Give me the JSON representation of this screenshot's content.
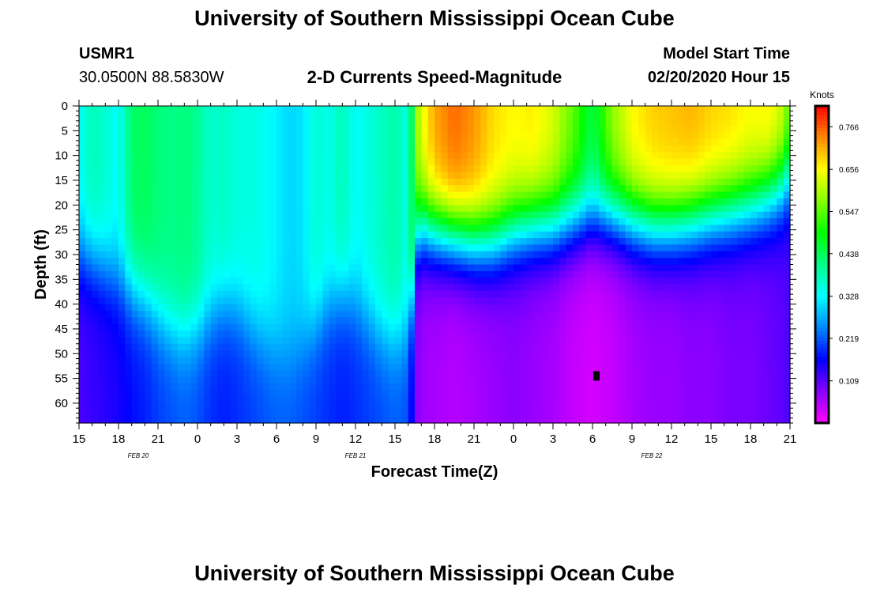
{
  "page": {
    "title_top": "University of Southern Mississippi Ocean Cube",
    "title_bottom": "University of Southern Mississippi Ocean Cube",
    "station_id": "USMR1",
    "station_coords": "30.0500N 88.5830W",
    "product_title": "2-D Currents Speed-Magnitude",
    "model_start_label": "Model Start Time",
    "model_start_value": "02/20/2020 Hour 15"
  },
  "colors": {
    "palette": [
      "#ff00ff",
      "#8800ff",
      "#0000ff",
      "#0088ff",
      "#00ffff",
      "#00ff88",
      "#00ff00",
      "#88ff00",
      "#ffff00",
      "#ff8800",
      "#ff0000"
    ],
    "marker": "#000000"
  },
  "chart_data": {
    "type": "heatmap",
    "title": "2-D Currents Speed-Magnitude",
    "xlabel": "Forecast Time(Z)",
    "ylabel": "Depth (ft)",
    "x_tick_labels": [
      "15",
      "18",
      "21",
      "0",
      "3",
      "6",
      "9",
      "12",
      "15",
      "18",
      "21",
      "0",
      "3",
      "6",
      "9",
      "12",
      "15",
      "18",
      "21"
    ],
    "x_hours": [
      0,
      3,
      6,
      9,
      12,
      15,
      18,
      21,
      24,
      27,
      30,
      33,
      36,
      39,
      42,
      45,
      48,
      51,
      54
    ],
    "date_labels": [
      {
        "text": "FEB  20",
        "hour": 4.5
      },
      {
        "text": "FEB  21",
        "hour": 21
      },
      {
        "text": "FEB  22",
        "hour": 43.5
      }
    ],
    "y_ticks": [
      0,
      5,
      10,
      15,
      20,
      25,
      30,
      35,
      40,
      45,
      50,
      55,
      60
    ],
    "xlim": [
      0,
      54
    ],
    "ylim": [
      0,
      64
    ],
    "colorbar": {
      "unit": "Knots",
      "min": 0.0,
      "max": 0.82,
      "labels": [
        "0.766",
        "0.656",
        "0.547",
        "0.438",
        "0.328",
        "0.219",
        "0.109"
      ]
    },
    "profile_hours": [
      0,
      1,
      2,
      3,
      4,
      5,
      6,
      7,
      8,
      9,
      10,
      11,
      12,
      13,
      14,
      15,
      16,
      17,
      18,
      19,
      20,
      21,
      22,
      23,
      24,
      25,
      25.8,
      27,
      28.5,
      30,
      31.5,
      33,
      34.5,
      36,
      37.5,
      39,
      40.5,
      42,
      43.5,
      45,
      46.5,
      48,
      49.5,
      51,
      52.5,
      53.5,
      54
    ],
    "surface_speed_knots": [
      0.33,
      0.38,
      0.36,
      0.33,
      0.43,
      0.44,
      0.42,
      0.41,
      0.42,
      0.4,
      0.36,
      0.37,
      0.35,
      0.35,
      0.34,
      0.32,
      0.3,
      0.31,
      0.36,
      0.34,
      0.38,
      0.33,
      0.35,
      0.37,
      0.39,
      0.34,
      0.62,
      0.72,
      0.76,
      0.73,
      0.68,
      0.66,
      0.67,
      0.63,
      0.55,
      0.45,
      0.58,
      0.66,
      0.69,
      0.7,
      0.71,
      0.69,
      0.68,
      0.66,
      0.67,
      0.62,
      0.55
    ],
    "decay_depth_ft": [
      30,
      31,
      33,
      35,
      37,
      39,
      42,
      45,
      46,
      45,
      42,
      40,
      41,
      44,
      47,
      49,
      50,
      48,
      44,
      40,
      38,
      40,
      43,
      46,
      47,
      46,
      24,
      25,
      26,
      27,
      27,
      25,
      24,
      24,
      23,
      22,
      22,
      23,
      24,
      24,
      23,
      22,
      21,
      20,
      18,
      16,
      14
    ],
    "bottom_speed_knots": [
      0.12,
      0.13,
      0.14,
      0.15,
      0.17,
      0.18,
      0.2,
      0.21,
      0.22,
      0.21,
      0.19,
      0.18,
      0.19,
      0.2,
      0.21,
      0.22,
      0.22,
      0.21,
      0.2,
      0.19,
      0.18,
      0.19,
      0.2,
      0.21,
      0.22,
      0.21,
      0.07,
      0.06,
      0.05,
      0.06,
      0.07,
      0.08,
      0.07,
      0.06,
      0.04,
      0.03,
      0.04,
      0.06,
      0.07,
      0.07,
      0.08,
      0.08,
      0.09,
      0.09,
      0.1,
      0.11,
      0.12
    ],
    "marker": {
      "hour": 39.3,
      "depth_ft": 54.5
    }
  }
}
